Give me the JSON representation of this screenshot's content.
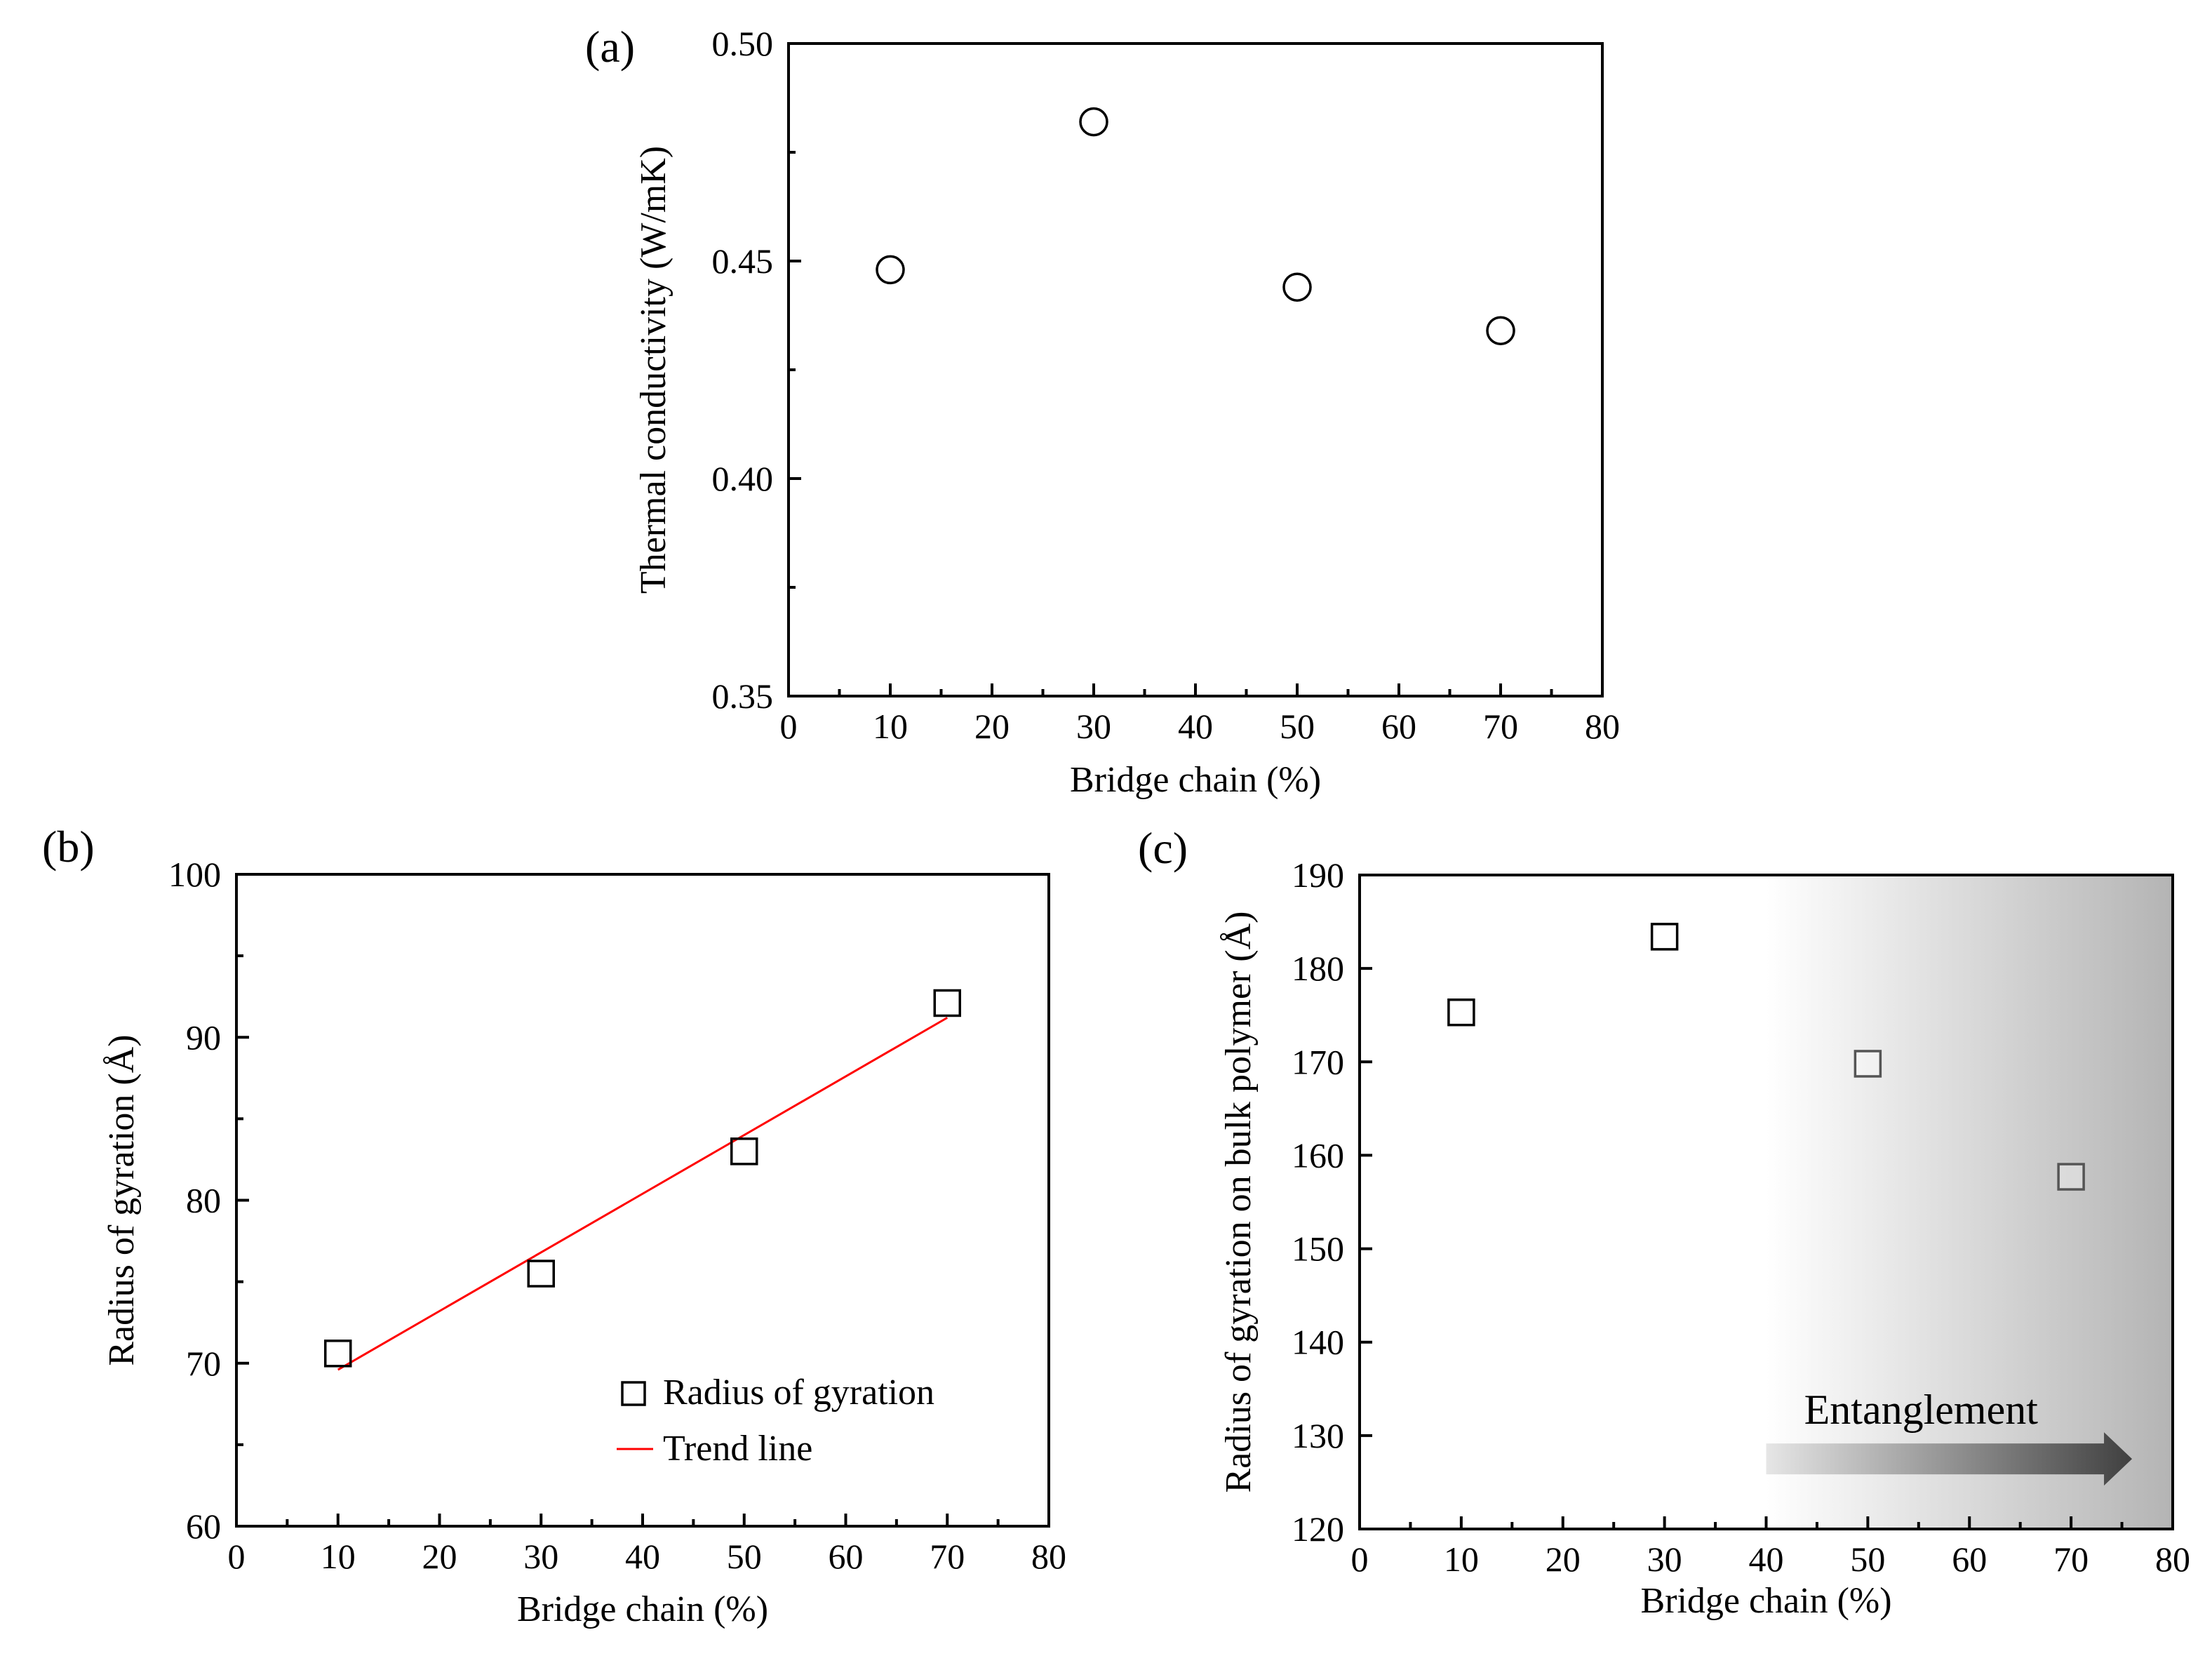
{
  "figure": "multi-panel",
  "chart_data": [
    {
      "panel": "(a)",
      "type": "scatter",
      "title": "",
      "xlabel": "Bridge chain (%)",
      "ylabel": "Thermal conductivity (W/mK)",
      "xlim": [
        0,
        80
      ],
      "ylim": [
        0.35,
        0.5
      ],
      "xticks": [
        "0",
        "10",
        "20",
        "30",
        "40",
        "50",
        "60",
        "70",
        "80"
      ],
      "yticks": [
        "0.35",
        "0.40",
        "0.45",
        "0.50"
      ],
      "grid": false,
      "marker": "circle",
      "series": [
        {
          "name": "Thermal conductivity",
          "x": [
            10,
            30,
            50,
            70
          ],
          "y": [
            0.448,
            0.482,
            0.444,
            0.434
          ]
        }
      ]
    },
    {
      "panel": "(b)",
      "type": "scatter",
      "title": "",
      "xlabel": "Bridge chain (%)",
      "ylabel": "Radius of gyration (Å)",
      "xlim": [
        0,
        80
      ],
      "ylim": [
        60,
        100
      ],
      "xticks": [
        "0",
        "10",
        "20",
        "30",
        "40",
        "50",
        "60",
        "70",
        "80"
      ],
      "yticks": [
        "60",
        "70",
        "80",
        "90",
        "100"
      ],
      "grid": false,
      "marker": "square",
      "series": [
        {
          "name": "Radius of gyration",
          "x": [
            10,
            30,
            50,
            70
          ],
          "y": [
            70.6,
            75.5,
            83.0,
            92.1
          ]
        }
      ],
      "trend_line": {
        "name": "Trend line",
        "x": [
          10,
          70
        ],
        "y": [
          69.6,
          91.2
        ],
        "color": "#ff0000"
      },
      "legend": [
        "Radius of gyration",
        "Trend line"
      ],
      "legend_position": "bottom-right"
    },
    {
      "panel": "(c)",
      "type": "scatter",
      "title": "",
      "xlabel": "Bridge chain (%)",
      "ylabel": "Radius of gyration on bulk polymer (Å)",
      "xlim": [
        0,
        80
      ],
      "ylim": [
        120,
        190
      ],
      "xticks": [
        "0",
        "10",
        "20",
        "30",
        "40",
        "50",
        "60",
        "70",
        "80"
      ],
      "yticks": [
        "120",
        "130",
        "140",
        "150",
        "160",
        "170",
        "180",
        "190"
      ],
      "grid": false,
      "marker": "square",
      "series": [
        {
          "name": "Radius of gyration on bulk polymer",
          "x": [
            10,
            30,
            50,
            70
          ],
          "y": [
            175.3,
            183.4,
            169.8,
            157.7
          ]
        }
      ],
      "shaded_region": {
        "x_start": 40,
        "x_end": 80,
        "color": "#b4b4b4"
      },
      "annotation": {
        "text": "Entanglement",
        "arrow_from_x": 40,
        "arrow_to_x": 76,
        "arrow_y": 127.5
      }
    }
  ]
}
